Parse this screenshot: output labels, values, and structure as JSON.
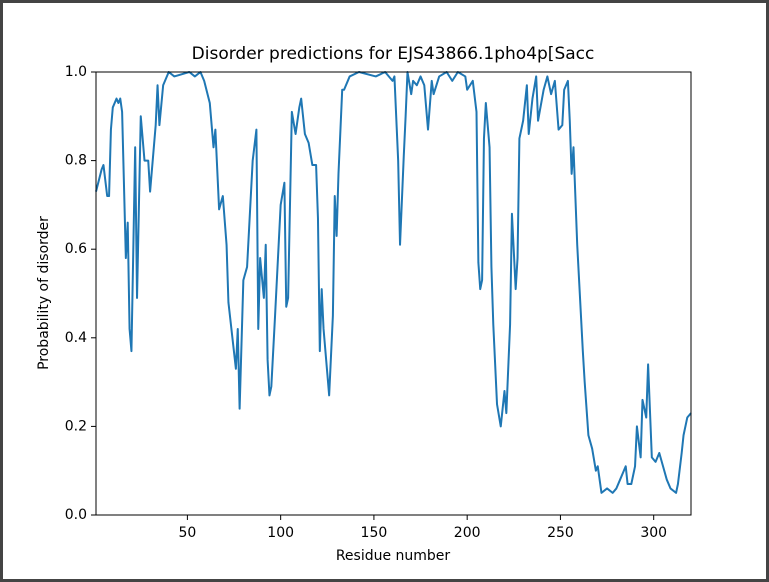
{
  "chart_data": {
    "type": "line",
    "title": "Disorder predictions for EJS43866.1pho4p[Sacc",
    "x_label": "Residue number",
    "y_label": "Probability of disorder",
    "xlim": [
      1,
      320
    ],
    "ylim": [
      0,
      1
    ],
    "xticks": [
      50,
      100,
      150,
      200,
      250,
      300
    ],
    "yticks": [
      {
        "value": 0,
        "label": "0.0"
      },
      {
        "value": 0.2,
        "label": "0.2"
      },
      {
        "value": 0.4,
        "label": "0.4"
      },
      {
        "value": 0.6,
        "label": "0.6"
      },
      {
        "value": 0.8,
        "label": "0.8"
      },
      {
        "value": 1,
        "label": "1.0"
      }
    ],
    "series": [
      {
        "color": "#1f77b4",
        "x": [
          1,
          4,
          5,
          7,
          8,
          9,
          10,
          12,
          13,
          14,
          15,
          17,
          18,
          19,
          20,
          22,
          23,
          25,
          27,
          29,
          30,
          33,
          34,
          35,
          37,
          40,
          43,
          51,
          54,
          57,
          59,
          62,
          64,
          65,
          67,
          69,
          71,
          72,
          76,
          77,
          78,
          80,
          82,
          85,
          87,
          88,
          89,
          91,
          92,
          93,
          94,
          95,
          97,
          100,
          102,
          103,
          104,
          106,
          108,
          110,
          111,
          113,
          115,
          117,
          119,
          120,
          121,
          122,
          123,
          125,
          126,
          128,
          129,
          130,
          131,
          133,
          134,
          137,
          142,
          151,
          156,
          160,
          161,
          163,
          164,
          166,
          167,
          168,
          170,
          171,
          173,
          175,
          177,
          179,
          181,
          182,
          185,
          189,
          192,
          195,
          199,
          200,
          203,
          205,
          206,
          207,
          208,
          209,
          210,
          212,
          213,
          214,
          216,
          218,
          220,
          221,
          223,
          224,
          226,
          227,
          228,
          230,
          232,
          233,
          235,
          237,
          238,
          241,
          243,
          245,
          247,
          249,
          251,
          252,
          254,
          255,
          256,
          257,
          259,
          262,
          263,
          265,
          267,
          269,
          270,
          272,
          275,
          278,
          280,
          282,
          285,
          286,
          288,
          290,
          291,
          293,
          294,
          296,
          297,
          299,
          301,
          303,
          305,
          307,
          309,
          312,
          313,
          315,
          316,
          318,
          320
        ],
        "values": [
          0.73,
          0.78,
          0.79,
          0.72,
          0.72,
          0.87,
          0.92,
          0.94,
          0.93,
          0.94,
          0.91,
          0.58,
          0.66,
          0.42,
          0.37,
          0.83,
          0.49,
          0.9,
          0.8,
          0.8,
          0.73,
          0.88,
          0.97,
          0.88,
          0.97,
          1.0,
          0.99,
          1.0,
          0.99,
          1.0,
          0.98,
          0.93,
          0.83,
          0.87,
          0.69,
          0.72,
          0.61,
          0.48,
          0.33,
          0.42,
          0.24,
          0.53,
          0.56,
          0.8,
          0.87,
          0.42,
          0.58,
          0.49,
          0.61,
          0.35,
          0.27,
          0.29,
          0.45,
          0.7,
          0.75,
          0.47,
          0.49,
          0.91,
          0.86,
          0.92,
          0.94,
          0.86,
          0.84,
          0.79,
          0.79,
          0.67,
          0.37,
          0.51,
          0.42,
          0.32,
          0.27,
          0.45,
          0.72,
          0.63,
          0.77,
          0.96,
          0.96,
          0.99,
          1.0,
          0.99,
          1.0,
          0.98,
          0.99,
          0.8,
          0.61,
          0.81,
          0.9,
          1.0,
          0.95,
          0.98,
          0.97,
          0.99,
          0.97,
          0.87,
          0.98,
          0.95,
          0.99,
          1.0,
          0.98,
          1.0,
          0.99,
          0.96,
          0.98,
          0.91,
          0.57,
          0.51,
          0.53,
          0.85,
          0.93,
          0.83,
          0.56,
          0.43,
          0.25,
          0.2,
          0.28,
          0.23,
          0.43,
          0.68,
          0.51,
          0.58,
          0.85,
          0.89,
          0.97,
          0.86,
          0.94,
          0.99,
          0.89,
          0.96,
          0.99,
          0.95,
          0.98,
          0.87,
          0.88,
          0.96,
          0.98,
          0.89,
          0.77,
          0.83,
          0.61,
          0.37,
          0.3,
          0.18,
          0.15,
          0.1,
          0.11,
          0.05,
          0.06,
          0.05,
          0.06,
          0.08,
          0.11,
          0.07,
          0.07,
          0.11,
          0.2,
          0.13,
          0.26,
          0.22,
          0.34,
          0.13,
          0.12,
          0.14,
          0.11,
          0.08,
          0.06,
          0.05,
          0.07,
          0.14,
          0.18,
          0.22,
          0.23
        ]
      }
    ]
  }
}
